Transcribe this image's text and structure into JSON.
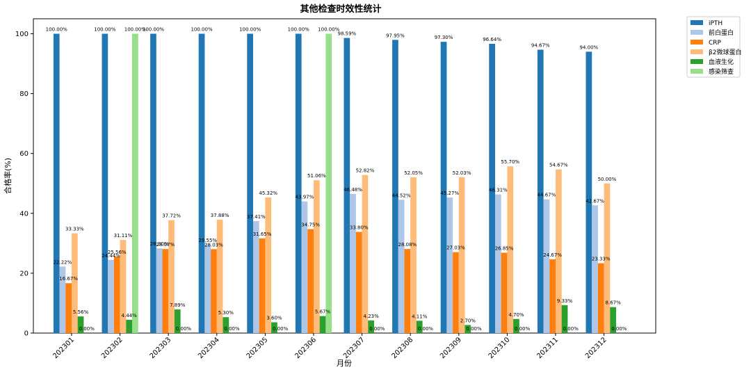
{
  "chart_data": {
    "type": "bar",
    "title": "其他检查时效性统计",
    "xlabel": "月份",
    "ylabel": "合格率(%)",
    "ylim": [
      0,
      105
    ],
    "yticks": [
      0,
      20,
      40,
      60,
      80,
      100
    ],
    "grid": false,
    "legend_position": "outside-top-right",
    "categories": [
      "202301",
      "202302",
      "202303",
      "202304",
      "202305",
      "202306",
      "202307",
      "202308",
      "202309",
      "202310",
      "202311",
      "202312"
    ],
    "series": [
      {
        "name": "iPTH",
        "color": "#1f77b4",
        "values": [
          100.0,
          100.0,
          100.0,
          100.0,
          100.0,
          100.0,
          98.59,
          97.95,
          97.3,
          96.64,
          94.67,
          94.0
        ],
        "labels": [
          "100.00%",
          "100.00%",
          "100.00%",
          "100.00%",
          "100.00%",
          "100.00%",
          "98.59%",
          "97.95%",
          "97.30%",
          "96.64%",
          "94.67%",
          "94.00%"
        ]
      },
      {
        "name": "前白蛋白",
        "color": "#aec7e8",
        "values": [
          22.22,
          24.44,
          28.3,
          29.55,
          37.41,
          43.97,
          46.48,
          44.52,
          45.27,
          46.31,
          44.67,
          42.67
        ],
        "labels": [
          "22.22%",
          "24.44%",
          "28.30%",
          "29.55%",
          "37.41%",
          "43.97%",
          "46.48%",
          "44.52%",
          "45.27%",
          "46.31%",
          "44.67%",
          "42.67%"
        ]
      },
      {
        "name": "CRP",
        "color": "#ff7f0e",
        "values": [
          16.67,
          25.56,
          28.07,
          28.03,
          31.65,
          34.75,
          33.8,
          28.08,
          27.03,
          26.85,
          24.67,
          23.33
        ],
        "labels": [
          "16.67%",
          "25.56%",
          "28.07%",
          "28.03%",
          "31.65%",
          "34.75%",
          "33.80%",
          "28.08%",
          "27.03%",
          "26.85%",
          "24.67%",
          "23.33%"
        ]
      },
      {
        "name": "β2微球蛋白",
        "color": "#ffbb78",
        "values": [
          33.33,
          31.11,
          37.72,
          37.88,
          45.32,
          51.06,
          52.82,
          52.05,
          52.03,
          55.7,
          54.67,
          50.0
        ],
        "labels": [
          "33.33%",
          "31.11%",
          "37.72%",
          "37.88%",
          "45.32%",
          "51.06%",
          "52.82%",
          "52.05%",
          "52.03%",
          "55.70%",
          "54.67%",
          "50.00%"
        ]
      },
      {
        "name": "血液生化",
        "color": "#2ca02c",
        "values": [
          5.56,
          4.44,
          7.89,
          5.3,
          3.6,
          5.67,
          4.23,
          4.11,
          2.7,
          4.7,
          9.33,
          8.67
        ],
        "labels": [
          "5.56%",
          "4.44%",
          "7.89%",
          "5.30%",
          "3.60%",
          "5.67%",
          "4.23%",
          "4.11%",
          "2.70%",
          "4.70%",
          "9.33%",
          "8.67%"
        ]
      },
      {
        "name": "感染筛查",
        "color": "#98df8a",
        "values": [
          0.0,
          100.0,
          0.0,
          0.0,
          0.0,
          100.0,
          0.0,
          0.0,
          0.0,
          0.0,
          0.0,
          0.0
        ],
        "labels": [
          "0.00%",
          "100.00%",
          "0.00%",
          "0.00%",
          "0.00%",
          "100.00%",
          "0.00%",
          "0.00%",
          "0.00%",
          "0.00%",
          "0.00%",
          "0.00%"
        ]
      }
    ]
  }
}
